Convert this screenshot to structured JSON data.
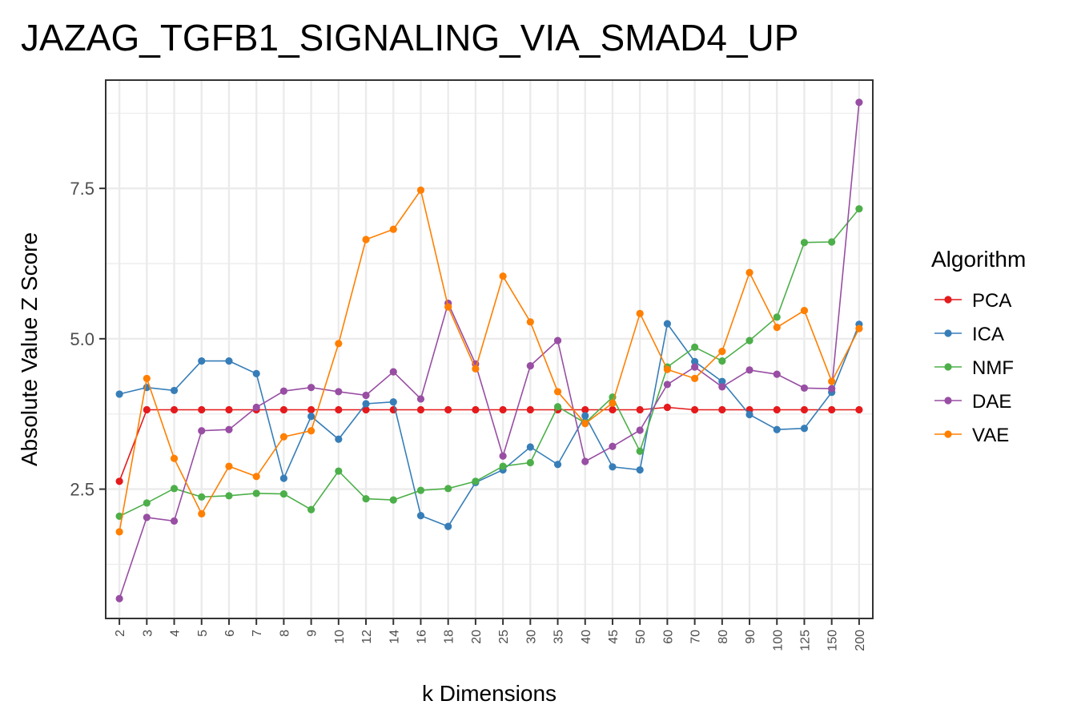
{
  "chart_data": {
    "type": "line",
    "title": "JAZAG_TGFB1_SIGNALING_VIA_SMAD4_UP",
    "xlabel": "k Dimensions",
    "ylabel": "Absolute Value Z Score",
    "categories": [
      "2",
      "3",
      "4",
      "5",
      "6",
      "7",
      "8",
      "9",
      "10",
      "12",
      "14",
      "16",
      "18",
      "20",
      "25",
      "30",
      "35",
      "40",
      "45",
      "50",
      "60",
      "70",
      "80",
      "90",
      "100",
      "125",
      "150",
      "200"
    ],
    "ylim": [
      0.35,
      9.3
    ],
    "yticks": [
      2.5,
      5.0,
      7.5
    ],
    "ytick_labels": [
      "2.5",
      "5.0",
      "7.5"
    ],
    "grid": true,
    "legend_title": "Algorithm",
    "legend_position": "right",
    "series": [
      {
        "name": "PCA",
        "color": "#e41a1c",
        "values": [
          2.63,
          3.82,
          3.82,
          3.82,
          3.82,
          3.82,
          3.82,
          3.82,
          3.82,
          3.82,
          3.82,
          3.82,
          3.82,
          3.82,
          3.82,
          3.82,
          3.82,
          3.82,
          3.82,
          3.82,
          3.86,
          3.82,
          3.82,
          3.82,
          3.82,
          3.82,
          3.82,
          3.82
        ]
      },
      {
        "name": "ICA",
        "color": "#377eb8",
        "values": [
          4.08,
          4.19,
          4.14,
          4.63,
          4.63,
          4.42,
          2.68,
          3.71,
          3.33,
          3.92,
          3.95,
          2.06,
          1.88,
          2.61,
          2.82,
          3.2,
          2.91,
          3.72,
          2.87,
          2.82,
          5.25,
          4.62,
          4.29,
          3.74,
          3.49,
          3.51,
          4.11,
          5.24
        ]
      },
      {
        "name": "NMF",
        "color": "#4daf4a",
        "values": [
          2.05,
          2.27,
          2.51,
          2.37,
          2.39,
          2.43,
          2.42,
          2.16,
          2.8,
          2.34,
          2.32,
          2.48,
          2.51,
          2.63,
          2.88,
          2.94,
          3.87,
          3.6,
          4.03,
          3.13,
          4.53,
          4.86,
          4.63,
          4.97,
          5.36,
          6.6,
          6.61,
          7.16
        ]
      },
      {
        "name": "DAE",
        "color": "#984ea3",
        "values": [
          0.68,
          2.03,
          1.97,
          3.47,
          3.49,
          3.86,
          4.13,
          4.19,
          4.12,
          4.06,
          4.45,
          4.0,
          5.59,
          4.58,
          3.05,
          4.55,
          4.97,
          2.96,
          3.21,
          3.48,
          4.24,
          4.53,
          4.2,
          4.48,
          4.41,
          4.18,
          4.17,
          8.93
        ]
      },
      {
        "name": "VAE",
        "color": "#ff7f00",
        "values": [
          1.79,
          4.34,
          3.01,
          2.09,
          2.88,
          2.71,
          3.37,
          3.47,
          4.92,
          6.65,
          6.82,
          7.47,
          5.53,
          4.5,
          6.04,
          5.28,
          4.12,
          3.59,
          3.93,
          5.42,
          4.49,
          4.34,
          4.79,
          6.1,
          5.19,
          5.47,
          4.29,
          5.17
        ]
      }
    ]
  }
}
